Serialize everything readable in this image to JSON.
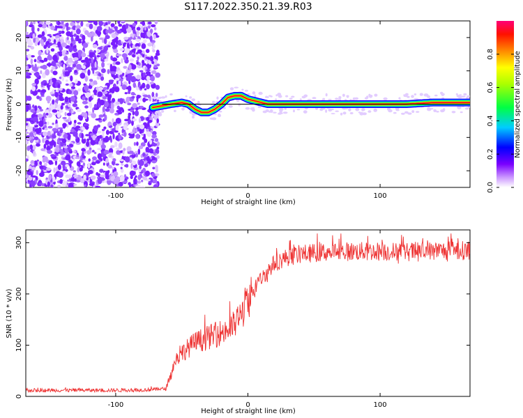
{
  "title": "S117.2022.350.21.39.R03",
  "chart_data": [
    {
      "type": "heatmap",
      "xlabel": "Height of straight line (km)",
      "ylabel": "Frequency (Hz)",
      "xlim": [
        -168,
        168
      ],
      "ylim": [
        -25,
        25
      ],
      "x_ticks": [
        -100,
        0,
        100
      ],
      "y_ticks": [
        -20,
        -10,
        0,
        10,
        20
      ],
      "colorbar": {
        "label": "Normalized spectral amplitude",
        "range": [
          0,
          1
        ],
        "ticks": [
          0.0,
          0.2,
          0.4,
          0.6,
          0.8
        ]
      },
      "noise_region_x": [
        -168,
        -70
      ],
      "signal_ridge": {
        "x": [
          -72,
          -65,
          -58,
          -50,
          -45,
          -40,
          -35,
          -30,
          -25,
          -20,
          -15,
          -10,
          -5,
          0,
          5,
          10,
          15,
          20,
          40,
          60,
          80,
          100,
          120,
          140,
          168
        ],
        "frequency": [
          -1.0,
          -0.5,
          0.0,
          0.5,
          0.0,
          -1.5,
          -2.5,
          -2.5,
          -1.5,
          0.0,
          2.0,
          2.5,
          2.5,
          1.5,
          1.0,
          0.5,
          0.0,
          0.0,
          0.0,
          0.0,
          0.0,
          0.0,
          0.0,
          0.5,
          0.5
        ]
      },
      "overlay_line_x": [
        -65,
        168
      ]
    },
    {
      "type": "line",
      "xlabel": "Height of straight line (km)",
      "ylabel": "SNR (10 * v/v)",
      "xlim": [
        -168,
        168
      ],
      "ylim": [
        0,
        325
      ],
      "x_ticks": [
        -100,
        0,
        100
      ],
      "y_ticks": [
        0,
        100,
        200,
        300
      ],
      "series": [
        {
          "color": "#ee3333",
          "envelope_x": [
            -168,
            -100,
            -75,
            -62,
            -58,
            -55,
            -50,
            -45,
            -40,
            -35,
            -30,
            -25,
            -20,
            -15,
            -10,
            -5,
            0,
            5,
            10,
            15,
            20,
            30,
            40,
            60,
            80,
            100,
            120,
            140,
            168
          ],
          "envelope_y": [
            12,
            12,
            13,
            15,
            45,
            70,
            85,
            95,
            105,
            110,
            115,
            120,
            125,
            130,
            140,
            160,
            190,
            210,
            230,
            245,
            260,
            272,
            278,
            282,
            283,
            283,
            282,
            284,
            285
          ]
        }
      ]
    }
  ]
}
